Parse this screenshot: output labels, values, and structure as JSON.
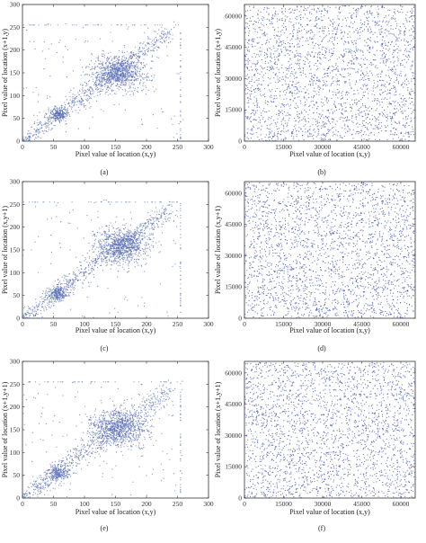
{
  "chart_data": [
    {
      "type": "scatter",
      "panel_label": "(a)",
      "kind": "correlated",
      "xlabel": "Pixel value of location (x,y)",
      "ylabel": "Pixel value of location (x+1,y)",
      "xlim": [
        0,
        300
      ],
      "ylim": [
        0,
        300
      ],
      "xticks": [
        "0",
        "50",
        "100",
        "150",
        "200",
        "250",
        "300"
      ],
      "yticks": [
        "0",
        "50",
        "100",
        "150",
        "200",
        "250",
        "300"
      ],
      "point_color": "#5b6fb5",
      "clusters": [
        {
          "cx": 155,
          "cy": 150,
          "spread": 22,
          "n": 900
        },
        {
          "cx": 58,
          "cy": 58,
          "spread": 8,
          "n": 220
        }
      ],
      "diagonal_band": {
        "from": 10,
        "to": 240,
        "spread": 18,
        "n": 650
      },
      "outliers": 120
    },
    {
      "type": "scatter",
      "panel_label": "(b)",
      "kind": "uniform",
      "xlabel": "Pixel value of location (x,y)",
      "ylabel": "Pixel value of location (x+1,y)",
      "xlim": [
        0,
        65535
      ],
      "ylim": [
        0,
        65535
      ],
      "xticks": [
        "0",
        "15000",
        "30000",
        "45000",
        "60000"
      ],
      "yticks": [
        "0",
        "15000",
        "30000",
        "45000",
        "60000"
      ],
      "point_color": "#3f4fb0",
      "n": 2400
    },
    {
      "type": "scatter",
      "panel_label": "(c)",
      "kind": "correlated",
      "xlabel": "Pixel value of location (x,y)",
      "ylabel": "Pixel value of location (x,y+1)",
      "xlim": [
        0,
        300
      ],
      "ylim": [
        0,
        300
      ],
      "xticks": [
        "0",
        "50",
        "100",
        "150",
        "200",
        "250",
        "300"
      ],
      "yticks": [
        "0",
        "50",
        "100",
        "150",
        "200",
        "250",
        "300"
      ],
      "point_color": "#5b6fb5",
      "clusters": [
        {
          "cx": 160,
          "cy": 160,
          "spread": 22,
          "n": 900
        },
        {
          "cx": 58,
          "cy": 55,
          "spread": 8,
          "n": 220
        }
      ],
      "diagonal_band": {
        "from": 10,
        "to": 240,
        "spread": 18,
        "n": 650
      },
      "outliers": 120
    },
    {
      "type": "scatter",
      "panel_label": "(d)",
      "kind": "uniform",
      "xlabel": "Pixel value of location (x,y)",
      "ylabel": "Pixel value of location (x,y+1)",
      "xlim": [
        0,
        65535
      ],
      "ylim": [
        0,
        65535
      ],
      "xticks": [
        "0",
        "15000",
        "30000",
        "45000",
        "60000"
      ],
      "yticks": [
        "0",
        "15000",
        "30000",
        "45000",
        "60000"
      ],
      "point_color": "#3f4fb0",
      "n": 2400
    },
    {
      "type": "scatter",
      "panel_label": "(e)",
      "kind": "correlated",
      "xlabel": "Pixel value of location (x,y)",
      "ylabel": "Pixel value of location (x+1,y+1)",
      "xlim": [
        0,
        300
      ],
      "ylim": [
        0,
        300
      ],
      "xticks": [
        "0",
        "50",
        "100",
        "150",
        "200",
        "250",
        "300"
      ],
      "yticks": [
        "0",
        "50",
        "100",
        "150",
        "200",
        "250",
        "300"
      ],
      "point_color": "#5b6fb5",
      "clusters": [
        {
          "cx": 155,
          "cy": 155,
          "spread": 24,
          "n": 900
        },
        {
          "cx": 58,
          "cy": 55,
          "spread": 9,
          "n": 220
        }
      ],
      "diagonal_band": {
        "from": 10,
        "to": 240,
        "spread": 22,
        "n": 650
      },
      "outliers": 130
    },
    {
      "type": "scatter",
      "panel_label": "(f)",
      "kind": "uniform",
      "xlabel": "Pixel value of location (x,y)",
      "ylabel": "Pixel value of location (x+1,y+1)",
      "xlim": [
        0,
        65535
      ],
      "ylim": [
        0,
        65535
      ],
      "xticks": [
        "0",
        "15000",
        "30000",
        "45000",
        "60000"
      ],
      "yticks": [
        "0",
        "15000",
        "30000",
        "45000",
        "60000"
      ],
      "point_color": "#3f4fb0",
      "n": 2400
    }
  ]
}
